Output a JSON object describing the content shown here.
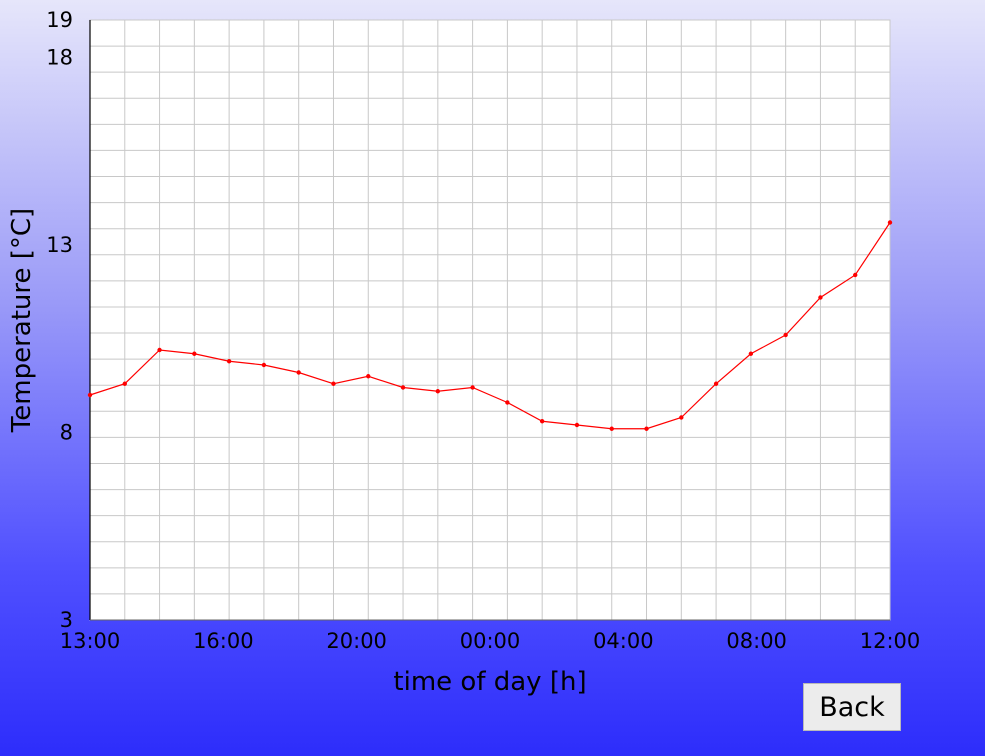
{
  "back_button": {
    "label": "Back"
  },
  "colors": {
    "series": "#ff0000",
    "grid": "#c8c8c8",
    "plot_background": "#ffffff",
    "background_top": "#e6e6fa",
    "background_bottom": "#2d2dfb"
  },
  "chart_data": {
    "type": "line",
    "title": "",
    "xlabel": "time of day [h]",
    "ylabel": "Temperature [°C]",
    "ylim": [
      3,
      19
    ],
    "y_ticks": [
      3,
      8,
      13,
      18,
      19
    ],
    "x_tick_labels": [
      "13:00",
      "16:00",
      "20:00",
      "00:00",
      "04:00",
      "08:00",
      "12:00"
    ],
    "grid": true,
    "legend": "none",
    "x": [
      "13:00",
      "14:00",
      "15:00",
      "16:00",
      "17:00",
      "18:00",
      "19:00",
      "20:00",
      "21:00",
      "22:00",
      "23:00",
      "00:00",
      "01:00",
      "02:00",
      "03:00",
      "04:00",
      "05:00",
      "06:00",
      "07:00",
      "08:00",
      "09:00",
      "10:00",
      "11:00",
      "12:00"
    ],
    "series": [
      {
        "name": "",
        "values": [
          9.0,
          9.3,
          10.2,
          10.1,
          9.9,
          9.8,
          9.6,
          9.3,
          9.5,
          9.2,
          9.1,
          9.2,
          8.8,
          8.3,
          8.2,
          8.1,
          8.1,
          8.4,
          9.3,
          10.1,
          10.6,
          11.6,
          12.2,
          13.6
        ]
      }
    ]
  }
}
